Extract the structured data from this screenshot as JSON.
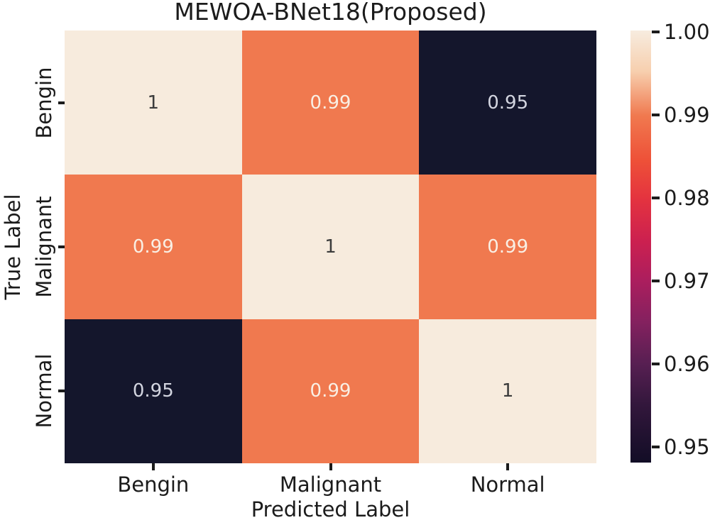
{
  "figure": {
    "title": "MEWOA-BNet18(Proposed)",
    "x_axis": {
      "label": "Predicted Label"
    },
    "y_axis": {
      "label": "True Label"
    }
  },
  "chart_data": {
    "type": "heatmap",
    "title": "MEWOA-BNet18(Proposed)",
    "xlabel": "Predicted Label",
    "ylabel": "True Label",
    "x_categories": [
      "Bengin",
      "Malignant",
      "Normal"
    ],
    "y_categories": [
      "Bengin",
      "Malignant",
      "Normal"
    ],
    "values": [
      [
        1.0,
        0.99,
        0.95
      ],
      [
        0.99,
        1.0,
        0.99
      ],
      [
        0.95,
        0.99,
        1.0
      ]
    ],
    "cell_labels": [
      [
        "1",
        "0.99",
        "0.95"
      ],
      [
        "0.99",
        "1",
        "0.99"
      ],
      [
        "0.95",
        "0.99",
        "1"
      ]
    ],
    "vmin": 0.95,
    "vmax": 1.0,
    "colormap": "rocket",
    "grid": false,
    "value_styles": {
      "1": {
        "bg": "#f7ebdd",
        "fg": "#3c3c3c"
      },
      "0.99": {
        "bg": "#f0794f",
        "fg": "#f9efe4"
      },
      "0.95": {
        "bg": "#14162c",
        "fg": "#d3d5e0"
      }
    },
    "colorbar": {
      "ticks": [
        {
          "label": "1.00",
          "pos": 0.004
        },
        {
          "label": "0.99",
          "pos": 0.196
        },
        {
          "label": "0.98",
          "pos": 0.388
        },
        {
          "label": "0.97",
          "pos": 0.58
        },
        {
          "label": "0.96",
          "pos": 0.772
        },
        {
          "label": "0.95",
          "pos": 0.964
        }
      ],
      "gradient_stops": [
        {
          "pos": 0.0,
          "color": "#f7ecdf"
        },
        {
          "pos": 0.095,
          "color": "#f7cfae"
        },
        {
          "pos": 0.197,
          "color": "#f0794f"
        },
        {
          "pos": 0.3,
          "color": "#ee5138"
        },
        {
          "pos": 0.389,
          "color": "#e4333f"
        },
        {
          "pos": 0.49,
          "color": "#cb2050"
        },
        {
          "pos": 0.58,
          "color": "#ab1e5e"
        },
        {
          "pos": 0.675,
          "color": "#84215f"
        },
        {
          "pos": 0.772,
          "color": "#571f52"
        },
        {
          "pos": 0.865,
          "color": "#33173c"
        },
        {
          "pos": 1.0,
          "color": "#120d26"
        }
      ]
    }
  }
}
